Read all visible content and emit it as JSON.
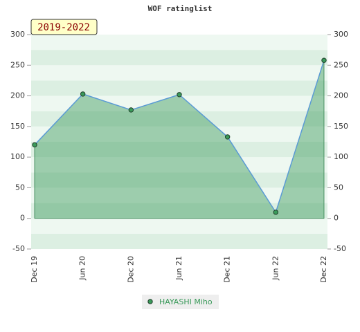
{
  "chart_data": {
    "type": "line",
    "title": "WOF ratinglist",
    "annotation": "2019-2022",
    "categories": [
      "Dec 19",
      "Jun 20",
      "Dec 20",
      "Jun 21",
      "Dec 21",
      "Jun 22",
      "Dec 22"
    ],
    "series": [
      {
        "name": "HAYASHI Miho",
        "color": "#3a9a5a",
        "values": [
          120,
          203,
          177,
          202,
          133,
          10,
          258
        ]
      }
    ],
    "ylim": [
      -50,
      300
    ],
    "yticks": [
      -50,
      0,
      50,
      100,
      150,
      200,
      250,
      300
    ],
    "y2lim": [
      -50,
      300
    ],
    "y2ticks": [
      -50,
      0,
      50,
      100,
      150,
      200,
      250,
      300
    ]
  }
}
